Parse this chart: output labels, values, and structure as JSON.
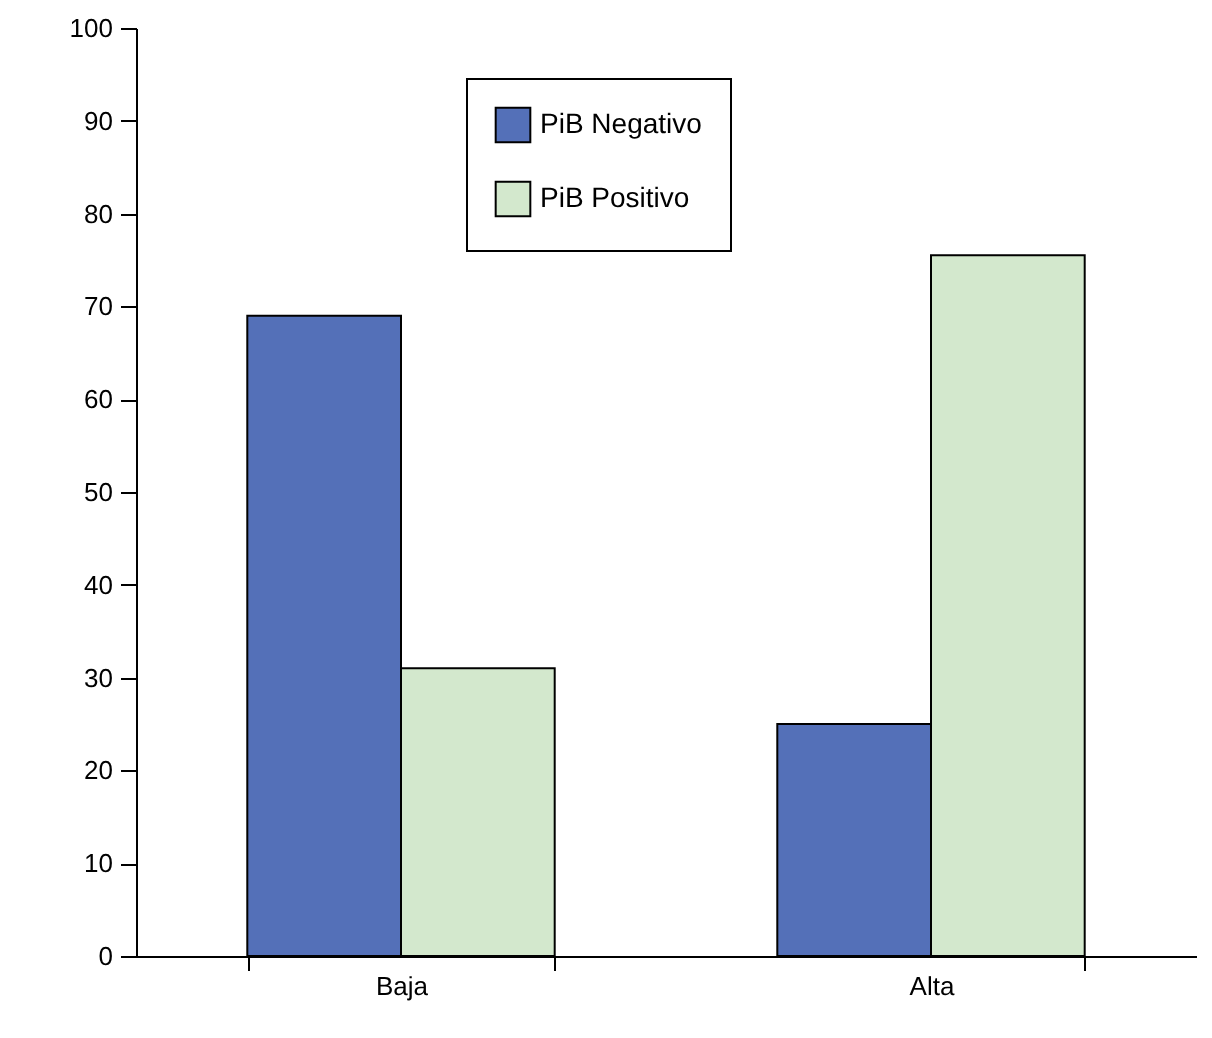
{
  "chart_data": {
    "type": "bar",
    "categories": [
      "Baja",
      "Alta"
    ],
    "series": [
      {
        "name": "PiB Negativo",
        "color": "#5470b8",
        "values": [
          69,
          25
        ]
      },
      {
        "name": "PiB Positivo",
        "color": "#d3e8cd",
        "values": [
          31,
          75.5
        ]
      }
    ],
    "ylim": [
      0,
      100
    ],
    "yticks": [
      0,
      10,
      20,
      30,
      40,
      50,
      60,
      70,
      80,
      90,
      100
    ],
    "legend": "top",
    "grid": false
  }
}
